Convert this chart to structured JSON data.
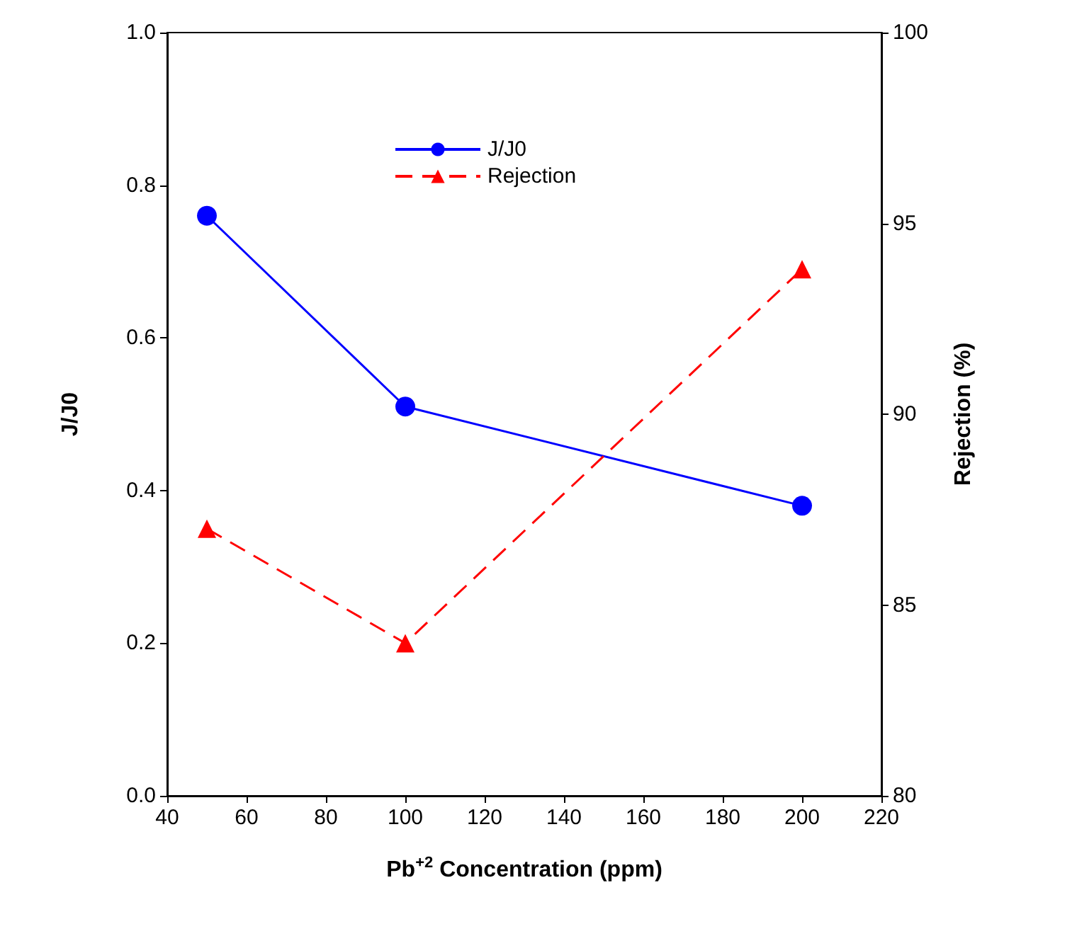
{
  "chart_data": {
    "type": "line",
    "xlabel": "Pb$^{+2}$ Concentration (ppm)",
    "ylabel": "J/J0",
    "y2label": "Rejection (%)",
    "x": [
      50,
      100,
      200
    ],
    "series": [
      {
        "name": "J/J0",
        "color": "#0000ff",
        "values": [
          0.76,
          0.51,
          0.38
        ],
        "marker": "circle",
        "line_style": "solid"
      },
      {
        "name": "Rejection",
        "color": "#ff0000",
        "values": [
          87,
          84,
          93.8
        ],
        "marker": "triangle",
        "line_style": "dashed",
        "axis": "y2"
      }
    ],
    "xlim": [
      40,
      220
    ],
    "xticks": [
      40,
      60,
      80,
      100,
      120,
      140,
      160,
      180,
      200,
      220
    ],
    "ylim": [
      0,
      1
    ],
    "yticks": [
      {
        "value": 0,
        "label": "0.0"
      },
      0.2,
      0.4,
      0.6,
      0.8,
      {
        "value": 1,
        "label": "1.0"
      }
    ],
    "y2lim": [
      80,
      100
    ],
    "y2ticks": [
      80,
      85,
      90,
      95,
      100
    ],
    "legend": "top",
    "grid": false
  }
}
